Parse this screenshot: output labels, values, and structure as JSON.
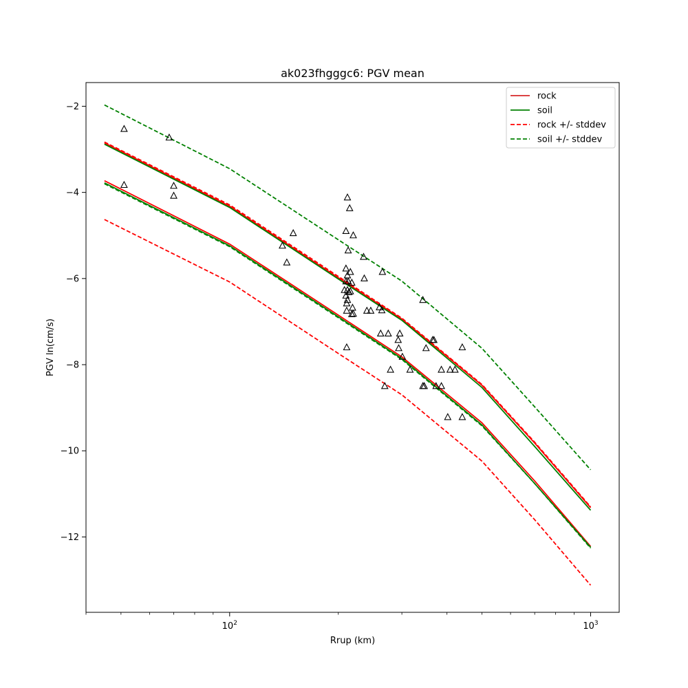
{
  "chart_data": {
    "type": "line",
    "title": "ak023fhgggc6: PGV mean",
    "xlabel": "Rrup (km)",
    "ylabel": "PGV ln(cm/s)",
    "xscale": "log",
    "xlim": [
      40,
      1200
    ],
    "ylim": [
      -13.75,
      -1.45
    ],
    "xticks": [
      {
        "value": 100,
        "label": "10",
        "exponent": "2"
      },
      {
        "value": 1000,
        "label": "10",
        "exponent": "3"
      }
    ],
    "yticks": [
      {
        "value": -2,
        "label": "−2"
      },
      {
        "value": -4,
        "label": "−4"
      },
      {
        "value": -6,
        "label": "−6"
      },
      {
        "value": -8,
        "label": "−8"
      },
      {
        "value": -10,
        "label": "−10"
      },
      {
        "value": -12,
        "label": "−12"
      }
    ],
    "grid": false,
    "legend_position": "top-right",
    "legend": [
      {
        "label": "rock",
        "color": "#d62728",
        "style": "solid"
      },
      {
        "label": "soil",
        "color": "#008000",
        "style": "solid"
      },
      {
        "label": "rock +/- stddev",
        "color": "#ff0000",
        "style": "dashed"
      },
      {
        "label": "soil +/- stddev",
        "color": "#008000",
        "style": "dashed"
      }
    ],
    "series": [
      {
        "name": "rock",
        "color": "#ff0000",
        "style": "solid",
        "x": [
          45,
          100,
          200,
          300,
          500,
          700,
          1000
        ],
        "y": [
          -3.73,
          -5.2,
          -6.85,
          -7.82,
          -9.35,
          -10.7,
          -12.22
        ]
      },
      {
        "name": "rock",
        "color": "#ff0000",
        "style": "solid",
        "x": [
          45,
          100,
          200,
          300,
          500,
          700,
          1000
        ],
        "y": [
          -2.85,
          -4.32,
          -5.98,
          -6.94,
          -8.48,
          -9.82,
          -11.32
        ]
      },
      {
        "name": "soil",
        "color": "#008000",
        "style": "solid",
        "x": [
          45,
          100,
          200,
          300,
          500,
          700,
          1000
        ],
        "y": [
          -2.88,
          -4.35,
          -6.01,
          -6.97,
          -8.53,
          -9.9,
          -11.38
        ]
      },
      {
        "name": "soil",
        "color": "#008000",
        "style": "solid",
        "x": [
          45,
          100,
          200,
          300,
          500,
          700,
          1000
        ],
        "y": [
          -3.78,
          -5.24,
          -6.89,
          -7.86,
          -9.4,
          -10.76,
          -12.24
        ]
      },
      {
        "name": "rock +/- stddev",
        "color": "#ff0000",
        "style": "dashed",
        "x": [
          45,
          100,
          200,
          300,
          500,
          700,
          1000
        ],
        "y": [
          -4.63,
          -6.08,
          -7.74,
          -8.7,
          -10.24,
          -11.6,
          -13.12
        ]
      },
      {
        "name": "rock +/- stddev",
        "color": "#ff0000",
        "style": "dashed",
        "x": [
          45,
          100,
          200,
          300,
          500,
          700,
          1000
        ],
        "y": [
          -2.83,
          -4.29,
          -5.95,
          -6.92,
          -8.46,
          -9.8,
          -11.3
        ]
      },
      {
        "name": "soil +/- stddev",
        "color": "#008000",
        "style": "dashed",
        "x": [
          45,
          100,
          200,
          300,
          500,
          700,
          1000
        ],
        "y": [
          -1.97,
          -3.45,
          -5.1,
          -6.06,
          -7.62,
          -8.98,
          -10.44
        ]
      },
      {
        "name": "soil +/- stddev",
        "color": "#008000",
        "style": "dashed",
        "x": [
          45,
          100,
          200,
          300,
          500,
          700,
          1000
        ],
        "y": [
          -3.8,
          -5.26,
          -6.91,
          -7.88,
          -9.42,
          -10.76,
          -12.26
        ]
      }
    ],
    "observations": {
      "marker": "triangle",
      "color": "#000000",
      "points": [
        [
          51,
          -2.53
        ],
        [
          51,
          -3.83
        ],
        [
          68,
          -2.73
        ],
        [
          70,
          -3.85
        ],
        [
          70,
          -4.08
        ],
        [
          140,
          -5.24
        ],
        [
          144,
          -5.63
        ],
        [
          150,
          -4.95
        ],
        [
          212,
          -4.12
        ],
        [
          215,
          -4.37
        ],
        [
          210,
          -4.9
        ],
        [
          220,
          -5.0
        ],
        [
          213,
          -5.35
        ],
        [
          210,
          -5.77
        ],
        [
          216,
          -5.85
        ],
        [
          212,
          -5.93
        ],
        [
          210,
          -6.07
        ],
        [
          213,
          -6.07
        ],
        [
          218,
          -6.1
        ],
        [
          208,
          -6.27
        ],
        [
          212,
          -6.27
        ],
        [
          214,
          -6.32
        ],
        [
          216,
          -6.3
        ],
        [
          210,
          -6.4
        ],
        [
          212,
          -6.5
        ],
        [
          211,
          -6.58
        ],
        [
          219,
          -6.68
        ],
        [
          211,
          -6.75
        ],
        [
          220,
          -6.82
        ],
        [
          218,
          -6.83
        ],
        [
          211,
          -7.6
        ],
        [
          235,
          -5.5
        ],
        [
          236,
          -6.0
        ],
        [
          240,
          -6.75
        ],
        [
          246,
          -6.75
        ],
        [
          260,
          -6.67
        ],
        [
          264,
          -6.74
        ],
        [
          265,
          -5.85
        ],
        [
          262,
          -7.28
        ],
        [
          269,
          -8.5
        ],
        [
          275,
          -7.28
        ],
        [
          279,
          -8.12
        ],
        [
          293,
          -7.43
        ],
        [
          294,
          -7.62
        ],
        [
          296,
          -7.28
        ],
        [
          301,
          -7.82
        ],
        [
          316,
          -8.12
        ],
        [
          343,
          -8.5
        ],
        [
          346,
          -8.5
        ],
        [
          343,
          -6.5
        ],
        [
          350,
          -7.62
        ],
        [
          365,
          -7.43
        ],
        [
          368,
          -7.43
        ],
        [
          373,
          -8.5
        ],
        [
          386,
          -8.12
        ],
        [
          386,
          -8.5
        ],
        [
          402,
          -9.22
        ],
        [
          408,
          -8.12
        ],
        [
          421,
          -8.12
        ],
        [
          441,
          -9.22
        ],
        [
          441,
          -7.6
        ]
      ]
    }
  }
}
